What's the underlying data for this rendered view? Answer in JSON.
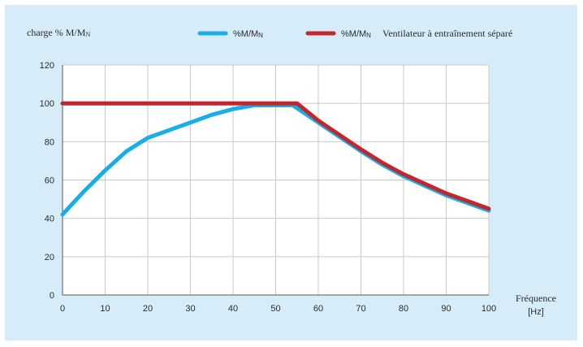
{
  "chart_data": {
    "type": "line",
    "ylabel": "charge % M/M",
    "ylabel_subscript": "N",
    "xlabel": "Fréquence",
    "xunit": "[Hz]",
    "xlim": [
      0,
      100
    ],
    "ylim": [
      0,
      120
    ],
    "x_ticks": [
      0,
      10,
      20,
      30,
      40,
      50,
      60,
      70,
      80,
      90,
      100
    ],
    "y_ticks": [
      0,
      20,
      40,
      60,
      80,
      100,
      120
    ],
    "grid": true,
    "legend_position": "top",
    "series": [
      {
        "name": "%M/M",
        "name_subscript": "N",
        "color": "#1aaee6",
        "points": [
          [
            0,
            42
          ],
          [
            5,
            54
          ],
          [
            10,
            65
          ],
          [
            15,
            75
          ],
          [
            20,
            82
          ],
          [
            25,
            86
          ],
          [
            30,
            90
          ],
          [
            35,
            94
          ],
          [
            40,
            97
          ],
          [
            45,
            99
          ],
          [
            50,
            99
          ],
          [
            54,
            99
          ],
          [
            60,
            90
          ],
          [
            70,
            75
          ],
          [
            75,
            68
          ],
          [
            80,
            62
          ],
          [
            90,
            52
          ],
          [
            100,
            44
          ]
        ]
      },
      {
        "name": "%M/M",
        "name_subscript": "N",
        "name_suffix": "Ventilateur à entraînement séparé",
        "color": "#c1272d",
        "points": [
          [
            0,
            100
          ],
          [
            10,
            100
          ],
          [
            20,
            100
          ],
          [
            30,
            100
          ],
          [
            40,
            100
          ],
          [
            50,
            100
          ],
          [
            55,
            100
          ],
          [
            60,
            91
          ],
          [
            70,
            76
          ],
          [
            75,
            69
          ],
          [
            80,
            63
          ],
          [
            90,
            53
          ],
          [
            100,
            45
          ]
        ]
      }
    ]
  }
}
